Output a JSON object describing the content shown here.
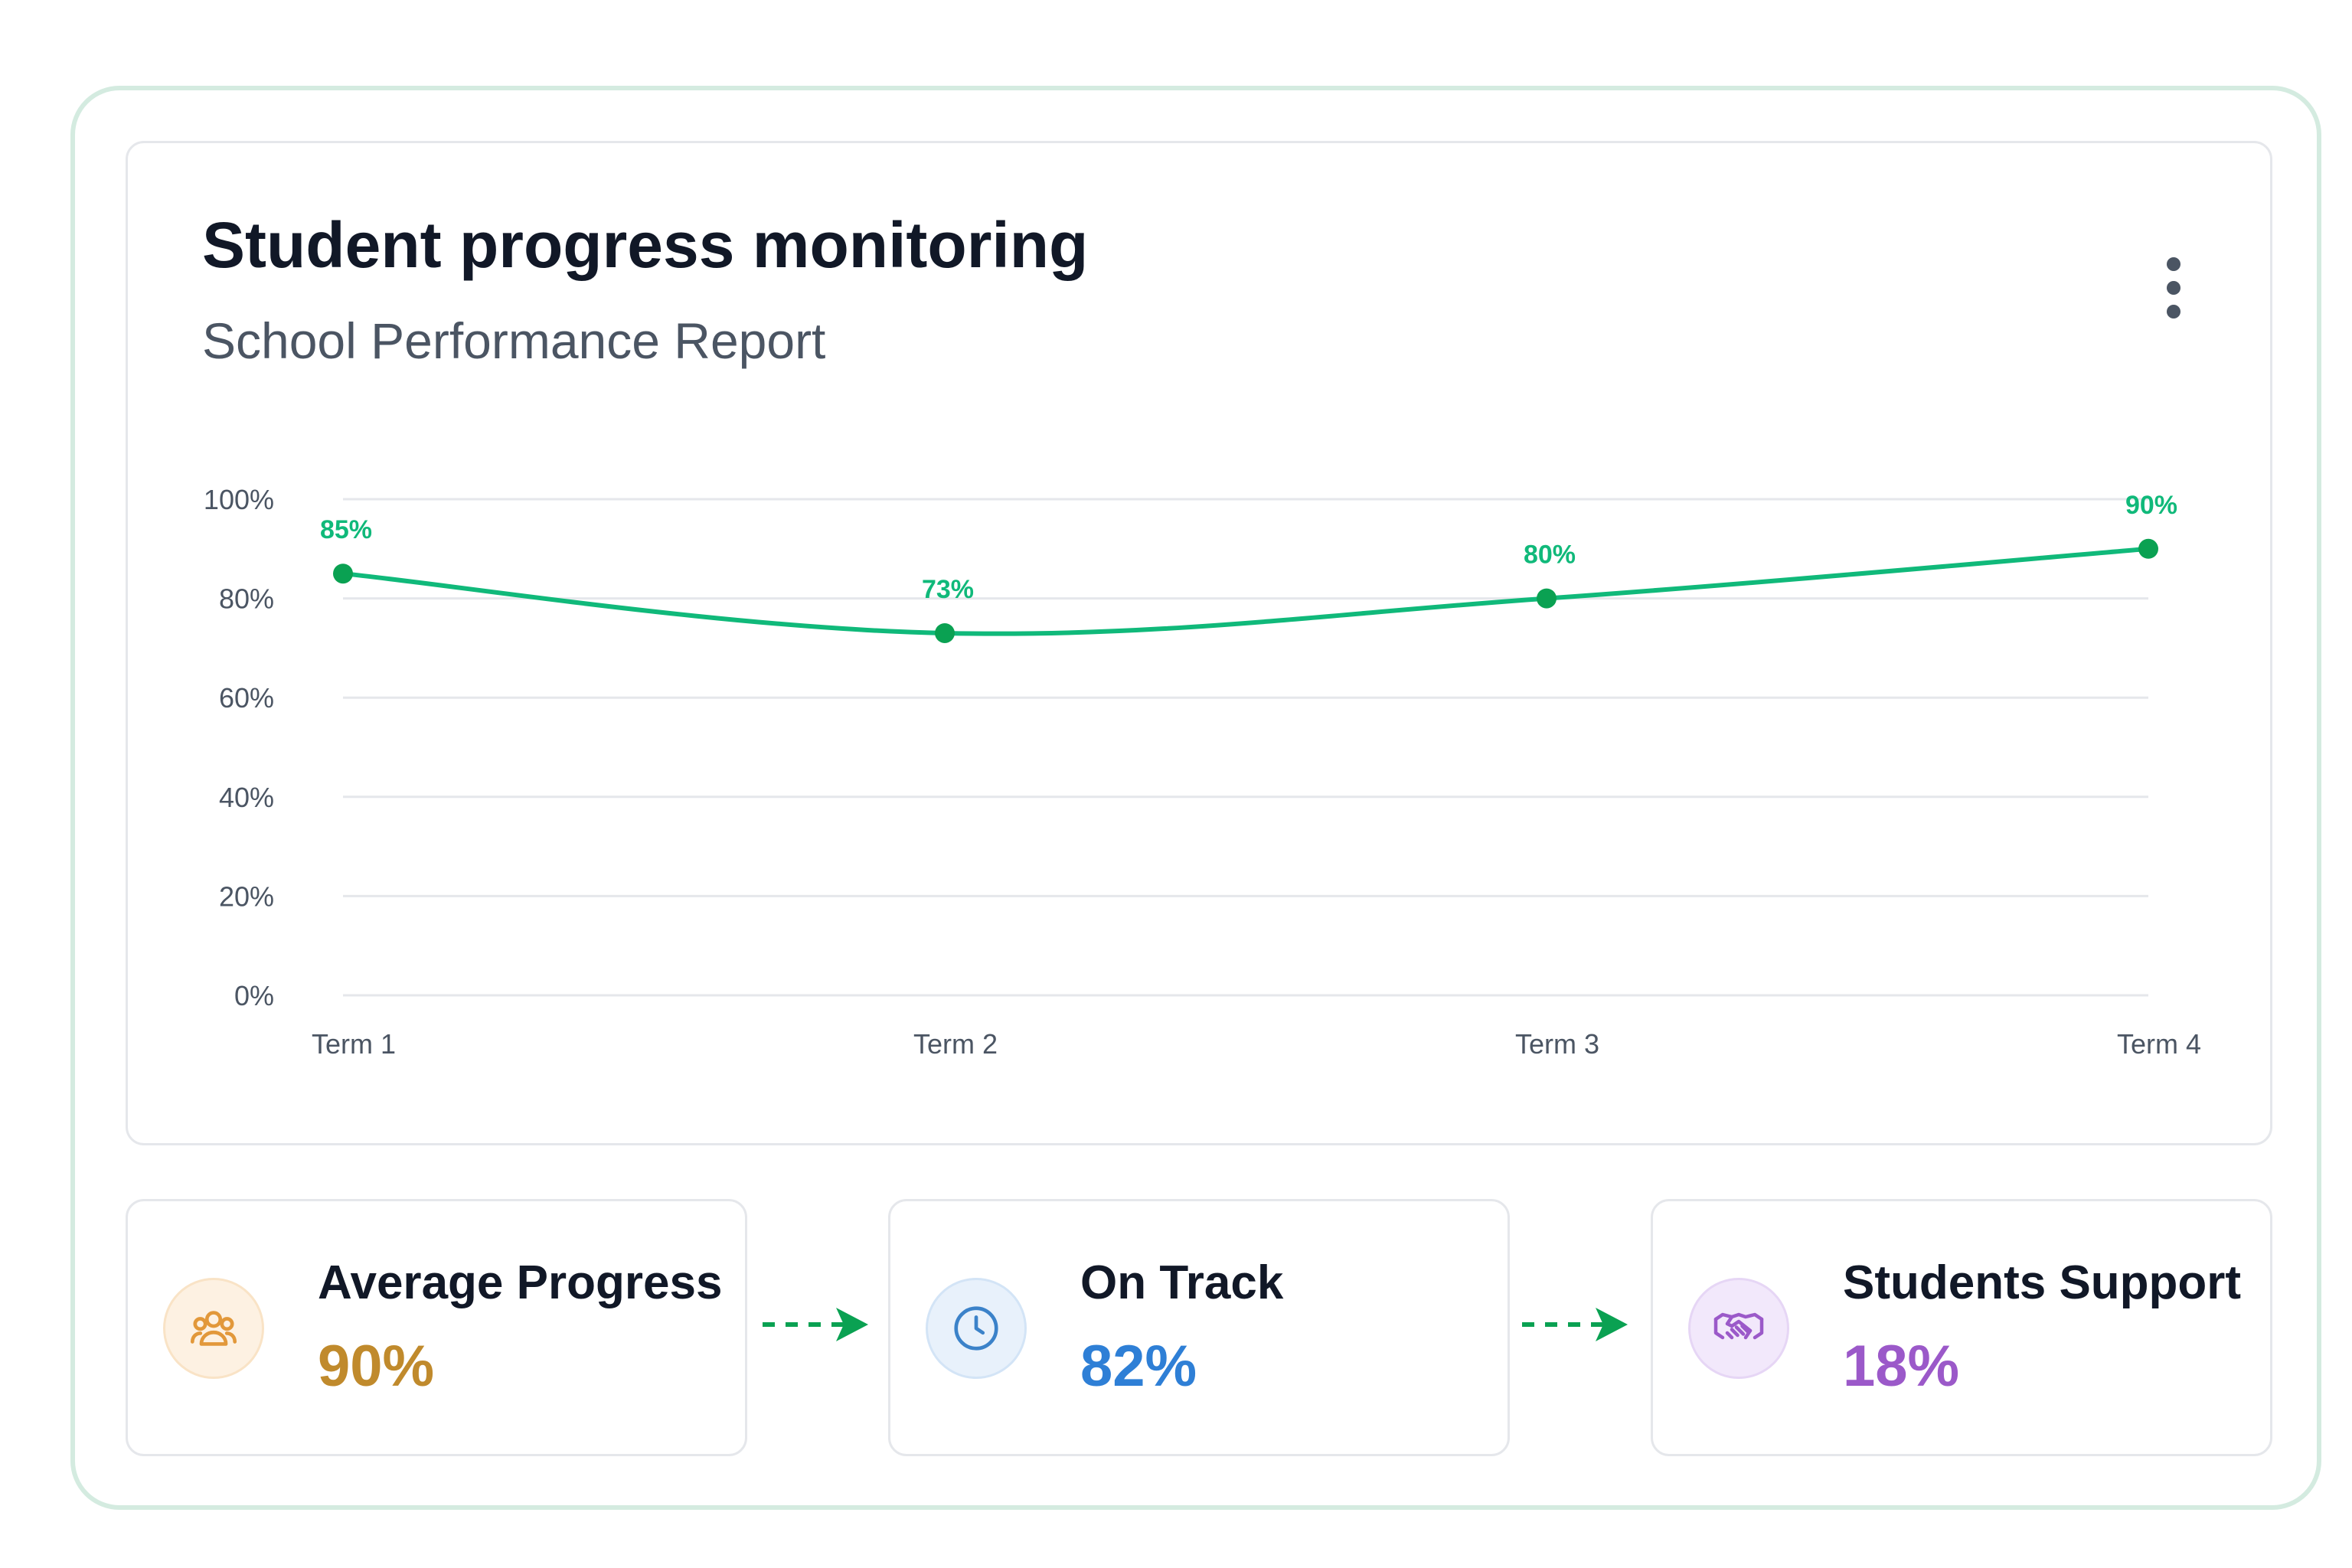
{
  "header": {
    "title": "Student progress monitoring",
    "subtitle": "School Performance Report",
    "menu_icon": "more-vertical-icon"
  },
  "colors": {
    "accent_green": "#10b97a",
    "point_green": "#0aa152",
    "frame_border": "#d4ebe0",
    "average_gold": "#c08a2c",
    "on_track_blue": "#2e7fd6",
    "support_purple": "#9b59c9"
  },
  "chart_data": {
    "type": "line",
    "categories": [
      "Term 1",
      "Term 2",
      "Term 3",
      "Term 4"
    ],
    "values": [
      85,
      73,
      80,
      90
    ],
    "data_labels": [
      "85%",
      "73%",
      "80%",
      "90%"
    ],
    "y_ticks": [
      "100%",
      "80%",
      "60%",
      "40%",
      "20%",
      "0%"
    ],
    "y_tick_values": [
      100,
      80,
      60,
      40,
      20,
      0
    ],
    "ylim": [
      0,
      100
    ],
    "grid": true,
    "smooth": true,
    "title": "",
    "xlabel": "",
    "ylabel": ""
  },
  "stats": [
    {
      "label": "Average Progress",
      "value": "90%",
      "icon": "users-group-icon",
      "color": "#c08a2c"
    },
    {
      "label": "On Track",
      "value": "82%",
      "icon": "clock-icon",
      "color": "#2e7fd6"
    },
    {
      "label": "Students Support",
      "value": "18%",
      "icon": "handshake-icon",
      "color": "#9b59c9"
    }
  ],
  "flow_arrows": [
    "dashed-arrow-right-icon",
    "dashed-arrow-right-icon"
  ]
}
